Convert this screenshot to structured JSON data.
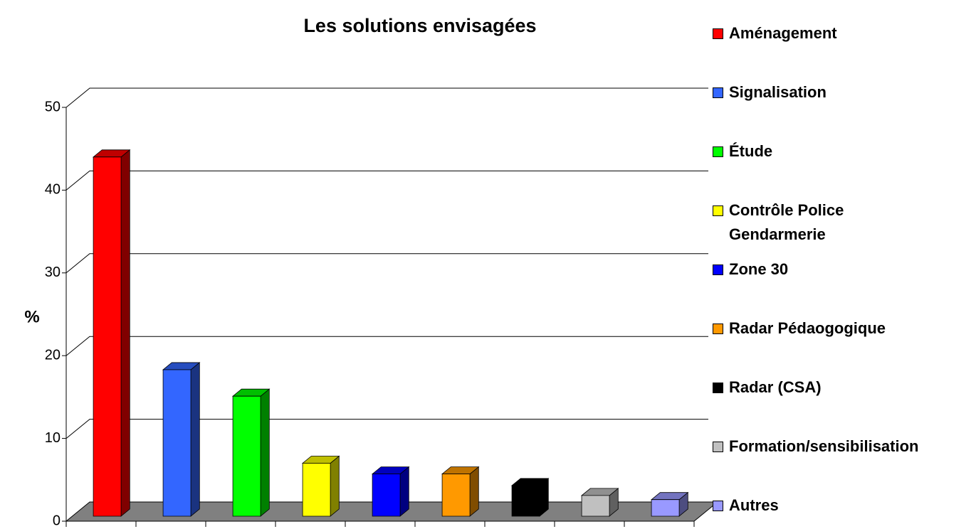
{
  "chart_data": {
    "type": "bar3d",
    "title": "Les solutions envisagées",
    "y_label": "%",
    "categories": [
      "Aménagement",
      "Signalisation",
      "Étude",
      "Contrôle Police\nGendarmerie",
      "Zone 30",
      "Radar Pédaogogique",
      "Radar (CSA)",
      "Formation/sensibilisation",
      "Autres"
    ],
    "values": [
      43.4,
      17.7,
      14.5,
      6.4,
      5.1,
      5.1,
      3.7,
      2.5,
      2.0
    ],
    "colors": [
      "#ff0000",
      "#3366ff",
      "#00ff00",
      "#ffff00",
      "#0000ff",
      "#ff9900",
      "#000000",
      "#c0c0c0",
      "#9999ff"
    ],
    "ylim": [
      0,
      50
    ],
    "yticks": [
      0,
      10,
      20,
      30,
      40,
      50
    ],
    "grid": true,
    "legend": "right"
  }
}
